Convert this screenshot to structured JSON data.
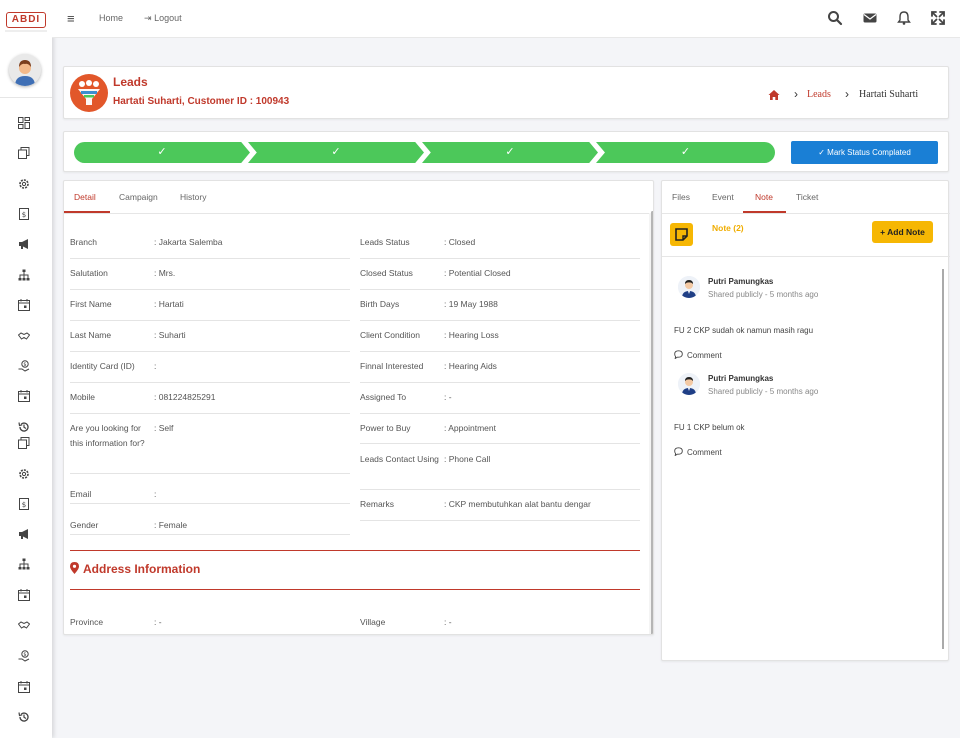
{
  "app": {
    "logo_text": "ABDI",
    "colors": {
      "brand": "#c0392b",
      "progress": "#4cc85a",
      "primary": "#1a7fd5",
      "accent": "#f6b704"
    }
  },
  "sidebar": {
    "icons": [
      "dashboard-icon",
      "copy-icon",
      "gear-icon",
      "dollar-doc-icon",
      "megaphone-icon",
      "network-icon",
      "calendar-icon",
      "handshake-icon",
      "money-hand-icon",
      "calendar-icon",
      "history-icon",
      "copy-icon",
      "gear-icon",
      "dollar-doc-icon",
      "megaphone-icon",
      "network-icon",
      "calendar-icon",
      "handshake-icon",
      "money-hand-icon",
      "calendar-icon",
      "history-icon"
    ]
  },
  "topbar": {
    "home_label": "Home",
    "logout_label": "Logout",
    "icons": [
      "search-icon",
      "envelope-icon",
      "bell-icon",
      "fullscreen-icon"
    ]
  },
  "header": {
    "title": "Leads",
    "subtitle": "Hartati Suharti, Customer ID : 100943",
    "breadcrumb": {
      "leads": "Leads",
      "current": "Hartati  Suharti"
    }
  },
  "progress": {
    "steps_completed": 4,
    "button_label": "Mark Status Complated"
  },
  "detail": {
    "tabs": [
      "Detail",
      "Campaign",
      "History"
    ],
    "left_fields": [
      {
        "label": "Branch",
        "value": ": Jakarta Salemba"
      },
      {
        "label": "Salutation",
        "value": ": Mrs."
      },
      {
        "label": "First Name",
        "value": ": Hartati"
      },
      {
        "label": "Last Name",
        "value": ": Suharti"
      },
      {
        "label": "Identity Card (ID)",
        "value": ":"
      },
      {
        "label": "Mobile",
        "value": ": 081224825291"
      },
      {
        "label": "Are you looking for this information for?",
        "value": ": Self"
      },
      {
        "label": "Email",
        "value": ":"
      },
      {
        "label": "Gender",
        "value": ": Female"
      }
    ],
    "right_fields": [
      {
        "label": "Leads Status",
        "value": ": Closed"
      },
      {
        "label": "Closed Status",
        "value": ": Potential Closed"
      },
      {
        "label": "Birth Days",
        "value": ": 19 May 1988"
      },
      {
        "label": "Client Condition",
        "value": ": Hearing Loss"
      },
      {
        "label": "Finnal Interested",
        "value": ": Hearing Aids"
      },
      {
        "label": "Assigned To",
        "value": ": -"
      },
      {
        "label": "Power to Buy",
        "value": ": Appointment"
      },
      {
        "label": "Leads Contact Using",
        "value": ": Phone Call"
      },
      {
        "label": "Remarks",
        "value": ": CKP membutuhkan alat bantu dengar"
      }
    ],
    "address": {
      "title": "Address Information",
      "fields": [
        {
          "label": "Province",
          "value": ": -"
        },
        {
          "label": "Village",
          "value": ": -"
        }
      ]
    }
  },
  "notes": {
    "tabs": [
      "Files",
      "Event",
      "Note",
      "Ticket"
    ],
    "title": "Note (2)",
    "add_label": "Add Note",
    "items": [
      {
        "author": "Putri Pamungkas",
        "meta": "Shared publicly - 5 months ago",
        "text": "FU 2 CKP sudah ok namun masih ragu",
        "comment_label": "Comment"
      },
      {
        "author": "Putri Pamungkas",
        "meta": "Shared publicly - 5 months ago",
        "text": "FU 1 CKP belum ok",
        "comment_label": "Comment"
      }
    ]
  }
}
